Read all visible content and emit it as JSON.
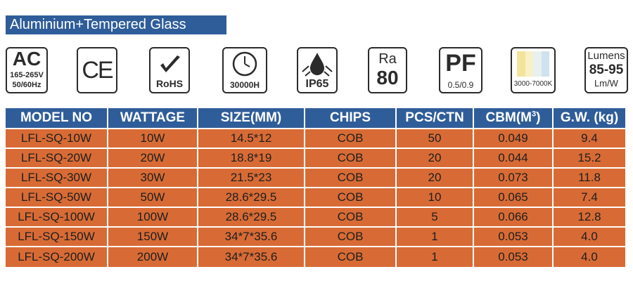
{
  "banner": {
    "title": "Aluminium+Tempered Glass"
  },
  "badges": {
    "ac": {
      "big": "AC",
      "line1": "165-265V",
      "line2": "50/60Hz"
    },
    "ce": {
      "label": "CE"
    },
    "rohs": {
      "label": "RoHS"
    },
    "life": {
      "label": "30000H"
    },
    "ip": {
      "label": "IP65"
    },
    "ra": {
      "top": "Ra",
      "value": "80"
    },
    "pf": {
      "big": "PF",
      "value": "0.5/0.9"
    },
    "cct": {
      "label": "3000-7000K",
      "swatches": [
        "#f3e49a",
        "#f8f0c6",
        "#e9f1ef",
        "#cfe2ee"
      ]
    },
    "lumens": {
      "top": "Lumens",
      "value": "85-95",
      "unit": "Lm/W"
    }
  },
  "table": {
    "headers": {
      "model": "MODEL NO",
      "wattage": "WATTAGE",
      "size": "SIZE(MM)",
      "chips": "CHIPS",
      "pcs": "PCS/CTN",
      "cbm": "CBM(M",
      "cbm_sup": "3",
      "cbm_close": ")",
      "gw": "G.W. (kg)"
    },
    "rows": [
      {
        "model": "LFL-SQ-10W",
        "wattage": "10W",
        "size": "14.5*12",
        "chips": "COB",
        "pcs": "50",
        "cbm": "0.049",
        "gw": "9.4"
      },
      {
        "model": "LFL-SQ-20W",
        "wattage": "20W",
        "size": "18.8*19",
        "chips": "COB",
        "pcs": "20",
        "cbm": "0.044",
        "gw": "15.2"
      },
      {
        "model": "LFL-SQ-30W",
        "wattage": "30W",
        "size": "21.5*23",
        "chips": "COB",
        "pcs": "20",
        "cbm": "0.073",
        "gw": "11.8"
      },
      {
        "model": "LFL-SQ-50W",
        "wattage": "50W",
        "size": "28.6*29.5",
        "chips": "COB",
        "pcs": "10",
        "cbm": "0.065",
        "gw": "7.4"
      },
      {
        "model": "LFL-SQ-100W",
        "wattage": "100W",
        "size": "28.6*29.5",
        "chips": "COB",
        "pcs": "5",
        "cbm": "0.066",
        "gw": "12.8"
      },
      {
        "model": "LFL-SQ-150W",
        "wattage": "150W",
        "size": "34*7*35.6",
        "chips": "COB",
        "pcs": "1",
        "cbm": "0.053",
        "gw": "4.0"
      },
      {
        "model": "LFL-SQ-200W",
        "wattage": "200W",
        "size": "34*7*35.6",
        "chips": "COB",
        "pcs": "1",
        "cbm": "0.053",
        "gw": "4.0"
      }
    ]
  },
  "colors": {
    "header_blue": "#2f5d99",
    "row_orange": "#d86b35",
    "icon_dark": "#2b2b2b"
  }
}
